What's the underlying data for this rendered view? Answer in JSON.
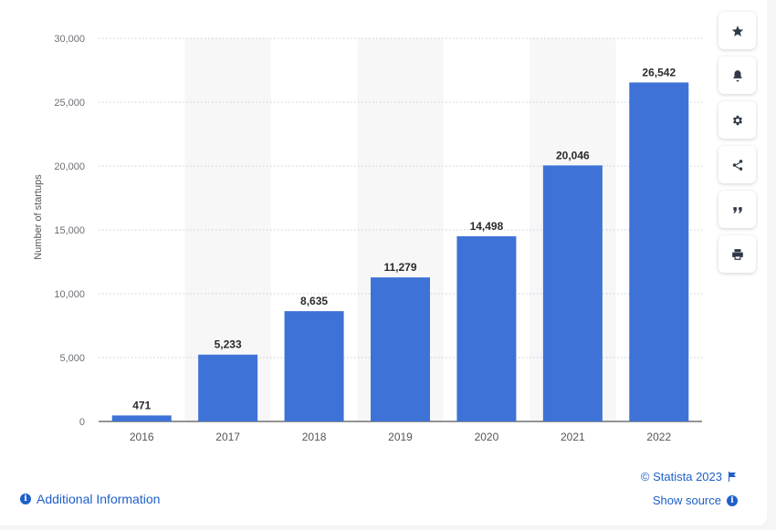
{
  "chart_data": {
    "type": "bar",
    "title": "",
    "xlabel": "",
    "ylabel": "Number of startups",
    "categories": [
      "2016",
      "2017",
      "2018",
      "2019",
      "2020",
      "2021",
      "2022"
    ],
    "values": [
      471,
      5233,
      8635,
      11279,
      14498,
      20046,
      26542
    ],
    "value_labels": [
      "471",
      "5,233",
      "8,635",
      "11,279",
      "14,498",
      "20,046",
      "26,542"
    ],
    "yticks": [
      0,
      5000,
      10000,
      15000,
      20000,
      25000,
      30000
    ],
    "ytick_labels": [
      "0",
      "5,000",
      "10,000",
      "15,000",
      "20,000",
      "25,000",
      "30,000"
    ],
    "ylim": [
      0,
      30000
    ],
    "grid": true,
    "bar_color": "#3e72d6"
  },
  "toolbar": {
    "items": [
      {
        "name": "favorite",
        "icon": "star-icon"
      },
      {
        "name": "notifications",
        "icon": "bell-icon"
      },
      {
        "name": "settings",
        "icon": "gear-icon"
      },
      {
        "name": "share",
        "icon": "share-icon"
      },
      {
        "name": "cite",
        "icon": "quote-icon"
      },
      {
        "name": "print",
        "icon": "print-icon"
      }
    ]
  },
  "footer": {
    "additional_info": "Additional Information",
    "credit": "© Statista 2023",
    "show_source": "Show source"
  },
  "colors": {
    "link": "#1f5fc8",
    "bar": "#3e72d6"
  }
}
